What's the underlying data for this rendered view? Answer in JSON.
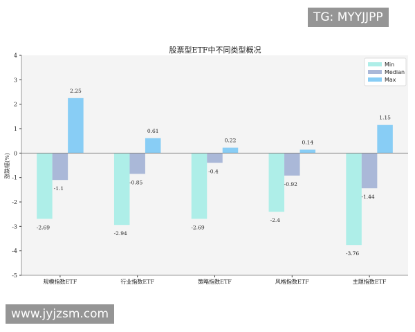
{
  "watermarks": {
    "top_right": "TG: MYYJJPP",
    "bottom_left": "www.jyjzsm.com"
  },
  "chart_data": {
    "type": "bar",
    "title": "股票型ETF中不同类型概况",
    "xlabel": "",
    "ylabel": "涨跌幅(%)",
    "ylim": [
      -5,
      4
    ],
    "yticks": [
      -5,
      -4,
      -3,
      -2,
      -1,
      0,
      1,
      2,
      3,
      4
    ],
    "grid": false,
    "legend_position": "top-right",
    "categories": [
      "规模指数ETF",
      "行业指数ETF",
      "策略指数ETF",
      "风格指数ETF",
      "主题指数ETF"
    ],
    "series": [
      {
        "name": "Min",
        "color": "#aeeee8",
        "values": [
          -2.69,
          -2.94,
          -2.69,
          -2.4,
          -3.76
        ]
      },
      {
        "name": "Median",
        "color": "#aab8d8",
        "values": [
          -1.1,
          -0.85,
          -0.4,
          -0.92,
          -1.44
        ]
      },
      {
        "name": "Max",
        "color": "#88cdf5",
        "values": [
          2.25,
          0.61,
          0.22,
          0.14,
          1.15
        ]
      }
    ]
  }
}
